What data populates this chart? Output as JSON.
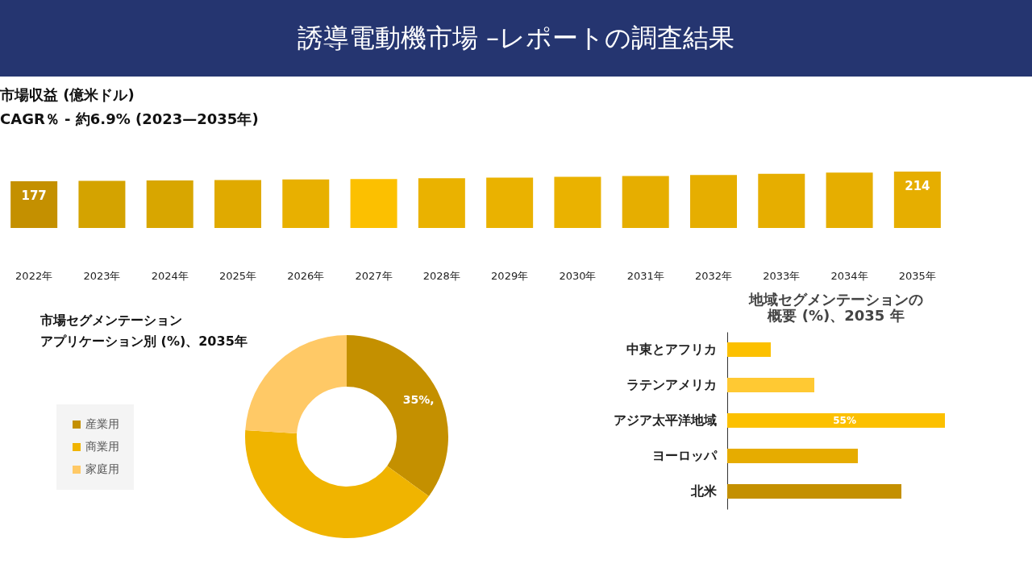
{
  "chart_data": [
    {
      "type": "other",
      "title": "誘導電動機市場 –レポートの調査結果"
    },
    {
      "type": "bar",
      "title": "市場収益 (億米ドル)",
      "subtitle": "CAGR％ - 約6.9% (2023—2035年)",
      "tick_labels": "x",
      "categories": [
        "2022年",
        "2023年",
        "2024年",
        "2025年",
        "2026年",
        "2027年",
        "2028年",
        "2029年",
        "2030年",
        "2031年",
        "2032年",
        "2033年",
        "2034年",
        "2035年"
      ],
      "values": [
        177,
        178.5,
        180,
        182,
        184,
        186,
        188.5,
        191,
        194,
        197.5,
        201,
        205.5,
        210,
        214
      ],
      "colors": [
        "#c49000",
        "#d4a300",
        "#d8a600",
        "#e0aa00",
        "#e8b000",
        "#fcc000",
        "#eab200",
        "#eab200",
        "#eab200",
        "#e6ae00",
        "#e6ae00",
        "#e6ae00",
        "#e6ae00",
        "#e6ae00"
      ],
      "value_labels": [
        "177",
        null,
        null,
        null,
        null,
        null,
        null,
        null,
        null,
        null,
        null,
        null,
        null,
        "214"
      ]
    },
    {
      "type": "donut",
      "title": "市場セグメンテーションアプリケーション別 (%)、2035年",
      "legend": "left",
      "categories": [
        "産業用",
        "商業用",
        "家庭用"
      ],
      "values": [
        35,
        41,
        24
      ],
      "colors": [
        "#c49000",
        "#f0b400",
        "#ffc966"
      ],
      "value_labels": [
        "35%,",
        null,
        null
      ]
    },
    {
      "type": "bar",
      "orientation": "horizontal",
      "tick_labels": "y",
      "title": "地域セグメンテーションの概要 (%)、2035 年",
      "categories": [
        "中東とアフリカ",
        "ラテンアメリカ",
        "アジア太平洋地域",
        "ヨーロッパ",
        "北米"
      ],
      "values": [
        11,
        22,
        55,
        33,
        44
      ],
      "colors": [
        "#fcc000",
        "#ffc933",
        "#fcc000",
        "#e6ac00",
        "#c49000"
      ],
      "value_labels": [
        null,
        null,
        "55%",
        null,
        null
      ]
    }
  ]
}
